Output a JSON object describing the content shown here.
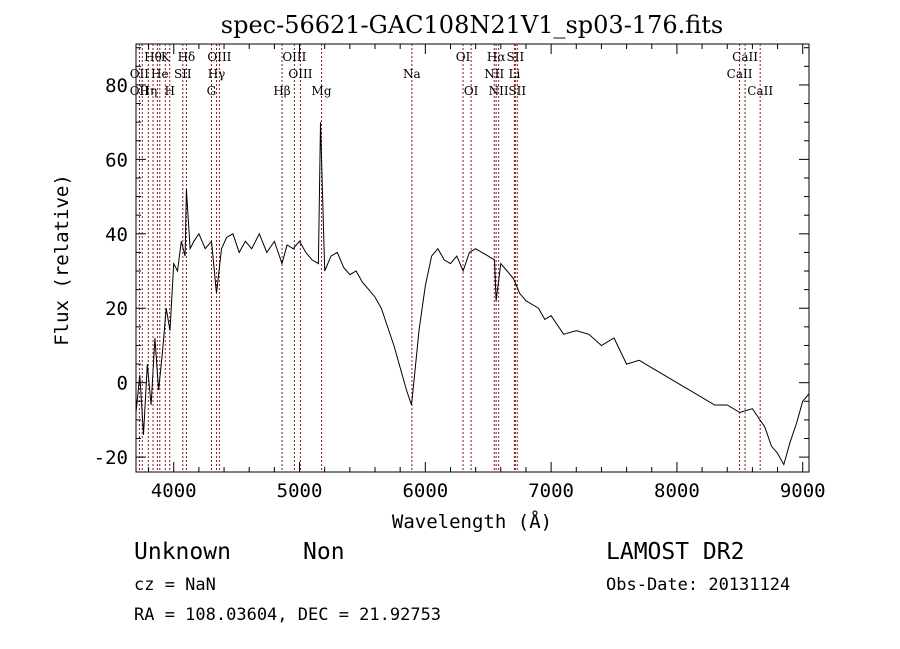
{
  "chart_data": {
    "type": "line",
    "title": "spec-56621-GAC108N21V1_sp03-176.fits",
    "xlabel": "Wavelength (Å)",
    "ylabel": "Flux (relative)",
    "xlim": [
      3700,
      9050
    ],
    "ylim": [
      -24,
      91
    ],
    "x_ticks": [
      4000,
      5000,
      6000,
      7000,
      8000,
      9000
    ],
    "y_ticks": [
      -20,
      0,
      20,
      40,
      60,
      80
    ],
    "grid": false,
    "line_color": "#000000",
    "marker_color": "#8b1a1a",
    "series": [
      {
        "x": [
          3700,
          3730,
          3760,
          3790,
          3820,
          3850,
          3880,
          3910,
          3940,
          3970,
          4000,
          4030,
          4060,
          4090,
          4101,
          4130,
          4160,
          4200,
          4250,
          4300,
          4340,
          4380,
          4420,
          4470,
          4520,
          4570,
          4620,
          4680,
          4740,
          4800,
          4861,
          4900,
          4950,
          5000,
          5050,
          5100,
          5150,
          5167,
          5200,
          5250,
          5300,
          5350,
          5400,
          5450,
          5500,
          5550,
          5600,
          5650,
          5700,
          5750,
          5800,
          5850,
          5890,
          5920,
          5950,
          6000,
          6050,
          6100,
          6150,
          6200,
          6250,
          6300,
          6350,
          6400,
          6450,
          6500,
          6550,
          6563,
          6600,
          6650,
          6700,
          6750,
          6800,
          6850,
          6900,
          6950,
          7000,
          7100,
          7200,
          7300,
          7400,
          7500,
          7600,
          7700,
          7800,
          7900,
          8000,
          8100,
          8200,
          8300,
          8400,
          8500,
          8600,
          8700,
          8750,
          8800,
          8850,
          8900,
          8950,
          9000,
          9050
        ],
        "y": [
          -8,
          2,
          -14,
          5,
          -6,
          12,
          -2,
          8,
          20,
          14,
          32,
          30,
          38,
          34,
          52,
          36,
          38,
          40,
          36,
          38,
          24,
          36,
          39,
          40,
          35,
          38,
          36,
          40,
          35,
          38,
          32,
          37,
          36,
          38,
          35,
          33,
          32,
          70,
          30,
          34,
          35,
          31,
          29,
          30,
          27,
          25,
          23,
          20,
          15,
          10,
          4,
          -2,
          -6,
          4,
          14,
          26,
          34,
          36,
          33,
          32,
          34,
          30,
          35,
          36,
          35,
          34,
          33,
          22,
          32,
          30,
          28,
          24,
          22,
          21,
          20,
          17,
          18,
          13,
          14,
          13,
          10,
          12,
          5,
          6,
          4,
          2,
          0,
          -2,
          -4,
          -6,
          -6,
          -8,
          -7,
          -12,
          -17,
          -19,
          -22,
          -16,
          -11,
          -5,
          -3
        ]
      }
    ],
    "lines_label_row1": [
      {
        "x": 3835,
        "label": "Hθ"
      },
      {
        "x": 3933,
        "label": "K"
      },
      {
        "x": 4101,
        "label": "Hδ"
      },
      {
        "x": 4363,
        "label": "OIII"
      },
      {
        "x": 4959,
        "label": "OIII"
      },
      {
        "x": 6300,
        "label": "OI"
      },
      {
        "x": 6563,
        "label": "Hα"
      },
      {
        "x": 6716,
        "label": "SII"
      },
      {
        "x": 8542,
        "label": "CaII"
      }
    ],
    "lines_label_row2": [
      {
        "x": 3727,
        "label": "OII"
      },
      {
        "x": 3889,
        "label": "He"
      },
      {
        "x": 4072,
        "label": "SII"
      },
      {
        "x": 4340,
        "label": "Hγ"
      },
      {
        "x": 5007,
        "label": "OIII"
      },
      {
        "x": 5893,
        "label": "Na"
      },
      {
        "x": 6548,
        "label": "NII"
      },
      {
        "x": 6708,
        "label": "Li"
      },
      {
        "x": 8498,
        "label": "CaII"
      }
    ],
    "lines_label_row3": [
      {
        "x": 3727,
        "label": "OII"
      },
      {
        "x": 3798,
        "label": "Hη"
      },
      {
        "x": 3968,
        "label": "H"
      },
      {
        "x": 4300,
        "label": "G"
      },
      {
        "x": 4861,
        "label": "Hβ"
      },
      {
        "x": 5175,
        "label": "Mg"
      },
      {
        "x": 6364,
        "label": "OI"
      },
      {
        "x": 6583,
        "label": "NII"
      },
      {
        "x": 6731,
        "label": "SII"
      },
      {
        "x": 8662,
        "label": "CaII"
      }
    ],
    "marker_lines_x": [
      3727,
      3750,
      3798,
      3835,
      3870,
      3889,
      3933,
      3968,
      4072,
      4101,
      4300,
      4340,
      4363,
      4861,
      4959,
      5007,
      5175,
      5893,
      6300,
      6364,
      6548,
      6563,
      6583,
      6708,
      6716,
      6731,
      8498,
      8542,
      8662
    ]
  },
  "footer": {
    "object_class": "Unknown",
    "subclass": "Non",
    "survey": "LAMOST DR2",
    "redshift": "cz = NaN",
    "obs_date": "Obs-Date: 20131124",
    "coords": "RA = 108.03604, DEC =  21.92753"
  }
}
